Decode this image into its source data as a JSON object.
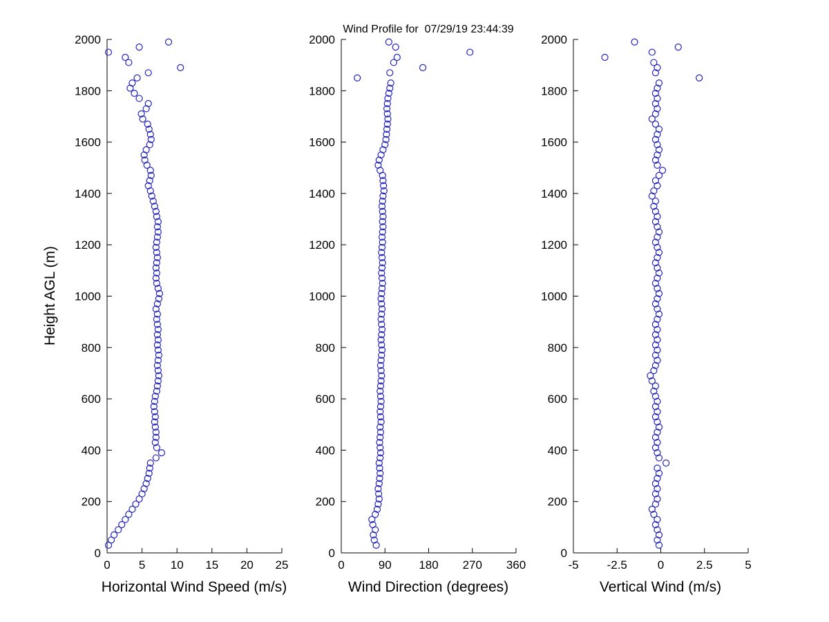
{
  "chart_data": {
    "type": "scatter",
    "title": "Wind Profile for  07/29/19 23:44:39",
    "ylabel": "Height AGL (m)",
    "ylim": [
      0,
      2000
    ],
    "yticks": [
      0,
      200,
      400,
      600,
      800,
      1000,
      1200,
      1400,
      1600,
      1800,
      2000
    ],
    "marker": "open-circle",
    "marker_color": "#2222bb",
    "axis_color": "#000000",
    "background_color": "#ffffff",
    "legend": "none",
    "grid": "off",
    "heights": [
      30,
      50,
      70,
      90,
      110,
      130,
      150,
      170,
      190,
      210,
      230,
      250,
      270,
      290,
      310,
      330,
      350,
      370,
      390,
      410,
      430,
      450,
      470,
      490,
      510,
      530,
      550,
      570,
      590,
      610,
      630,
      650,
      670,
      690,
      710,
      730,
      750,
      770,
      790,
      810,
      830,
      850,
      870,
      890,
      910,
      930,
      950,
      970,
      990,
      1010,
      1030,
      1050,
      1070,
      1090,
      1110,
      1130,
      1150,
      1170,
      1190,
      1210,
      1230,
      1250,
      1270,
      1290,
      1310,
      1330,
      1350,
      1370,
      1390,
      1410,
      1430,
      1450,
      1470,
      1490,
      1510,
      1530,
      1550,
      1570,
      1590,
      1610,
      1630,
      1650,
      1670,
      1690,
      1710,
      1730,
      1750,
      1770,
      1790,
      1810,
      1830,
      1850,
      1870,
      1890,
      1910,
      1930,
      1950,
      1970,
      1990
    ],
    "subplots": [
      {
        "name": "horizontal-wind-speed",
        "xlabel": "Horizontal Wind Speed (m/s)",
        "xlim": [
          0,
          25
        ],
        "xticks": [
          0,
          5,
          10,
          15,
          20,
          25
        ],
        "values": [
          0.2,
          0.6,
          1.0,
          1.6,
          2.1,
          2.6,
          3.1,
          3.6,
          4.1,
          4.6,
          5.0,
          5.3,
          5.6,
          5.8,
          6.0,
          6.1,
          6.2,
          7.0,
          7.8,
          7.1,
          6.9,
          7.0,
          7.0,
          6.9,
          6.8,
          6.9,
          6.8,
          6.7,
          6.8,
          6.9,
          7.1,
          7.2,
          7.3,
          7.4,
          7.3,
          7.2,
          7.3,
          7.4,
          7.3,
          7.2,
          7.3,
          7.2,
          7.3,
          7.2,
          7.1,
          7.2,
          7.0,
          7.2,
          7.4,
          7.5,
          7.3,
          7.1,
          7.0,
          7.1,
          7.0,
          7.1,
          7.2,
          7.1,
          7.0,
          7.1,
          7.2,
          7.3,
          7.2,
          7.3,
          7.1,
          7.0,
          6.8,
          6.6,
          6.4,
          6.2,
          5.9,
          6.1,
          6.3,
          6.2,
          5.7,
          5.4,
          5.3,
          5.6,
          6.1,
          6.3,
          6.2,
          6.0,
          5.8,
          5.1,
          4.9,
          5.6,
          5.9,
          4.6,
          3.9,
          3.3,
          3.6,
          4.3,
          5.9,
          10.5,
          3.1,
          2.6,
          0.2,
          4.6,
          8.8
        ]
      },
      {
        "name": "wind-direction",
        "xlabel": "Wind Direction (degrees)",
        "xlim": [
          0,
          360
        ],
        "xticks": [
          0,
          90,
          180,
          270,
          360
        ],
        "values": [
          72,
          68,
          66,
          70,
          65,
          63,
          70,
          74,
          76,
          78,
          77,
          76,
          78,
          79,
          80,
          79,
          78,
          80,
          81,
          80,
          79,
          80,
          81,
          80,
          82,
          81,
          80,
          81,
          82,
          81,
          80,
          81,
          82,
          83,
          82,
          81,
          82,
          83,
          84,
          83,
          82,
          83,
          84,
          83,
          82,
          83,
          84,
          83,
          82,
          83,
          84,
          85,
          84,
          83,
          84,
          85,
          84,
          83,
          84,
          85,
          84,
          85,
          86,
          85,
          86,
          85,
          84,
          85,
          86,
          88,
          87,
          86,
          85,
          80,
          76,
          78,
          82,
          86,
          90,
          92,
          93,
          94,
          95,
          96,
          95,
          94,
          95,
          96,
          98,
          100,
          102,
          33,
          100,
          168,
          108,
          115,
          265,
          112,
          98
        ]
      },
      {
        "name": "vertical-wind",
        "xlabel": "Vertical Wind (m/s)",
        "xlim": [
          -5,
          5
        ],
        "xticks": [
          -5,
          -2.5,
          0,
          2.5,
          5
        ],
        "values": [
          -0.1,
          -0.2,
          -0.1,
          -0.2,
          -0.3,
          -0.2,
          -0.4,
          -0.5,
          -0.3,
          -0.2,
          -0.3,
          -0.2,
          -0.3,
          -0.2,
          -0.1,
          -0.2,
          0.3,
          -0.1,
          -0.2,
          -0.3,
          -0.2,
          -0.3,
          -0.2,
          -0.1,
          -0.2,
          -0.3,
          -0.2,
          -0.3,
          -0.2,
          -0.3,
          -0.4,
          -0.3,
          -0.5,
          -0.6,
          -0.4,
          -0.3,
          -0.2,
          -0.3,
          -0.2,
          -0.3,
          -0.2,
          -0.3,
          -0.2,
          -0.3,
          -0.2,
          -0.1,
          -0.2,
          -0.3,
          -0.2,
          -0.1,
          -0.2,
          -0.3,
          -0.2,
          -0.1,
          -0.2,
          -0.3,
          -0.2,
          -0.1,
          -0.2,
          -0.3,
          -0.2,
          -0.1,
          -0.2,
          -0.3,
          -0.2,
          -0.3,
          -0.4,
          -0.3,
          -0.5,
          -0.4,
          -0.2,
          -0.3,
          -0.1,
          0.1,
          -0.2,
          -0.3,
          -0.2,
          -0.1,
          -0.2,
          -0.3,
          -0.2,
          -0.1,
          -0.3,
          -0.5,
          -0.3,
          -0.2,
          -0.3,
          -0.2,
          -0.3,
          -0.2,
          -0.1,
          2.2,
          -0.3,
          -0.2,
          -0.4,
          -3.2,
          -0.5,
          1.0,
          -1.5
        ]
      }
    ]
  }
}
